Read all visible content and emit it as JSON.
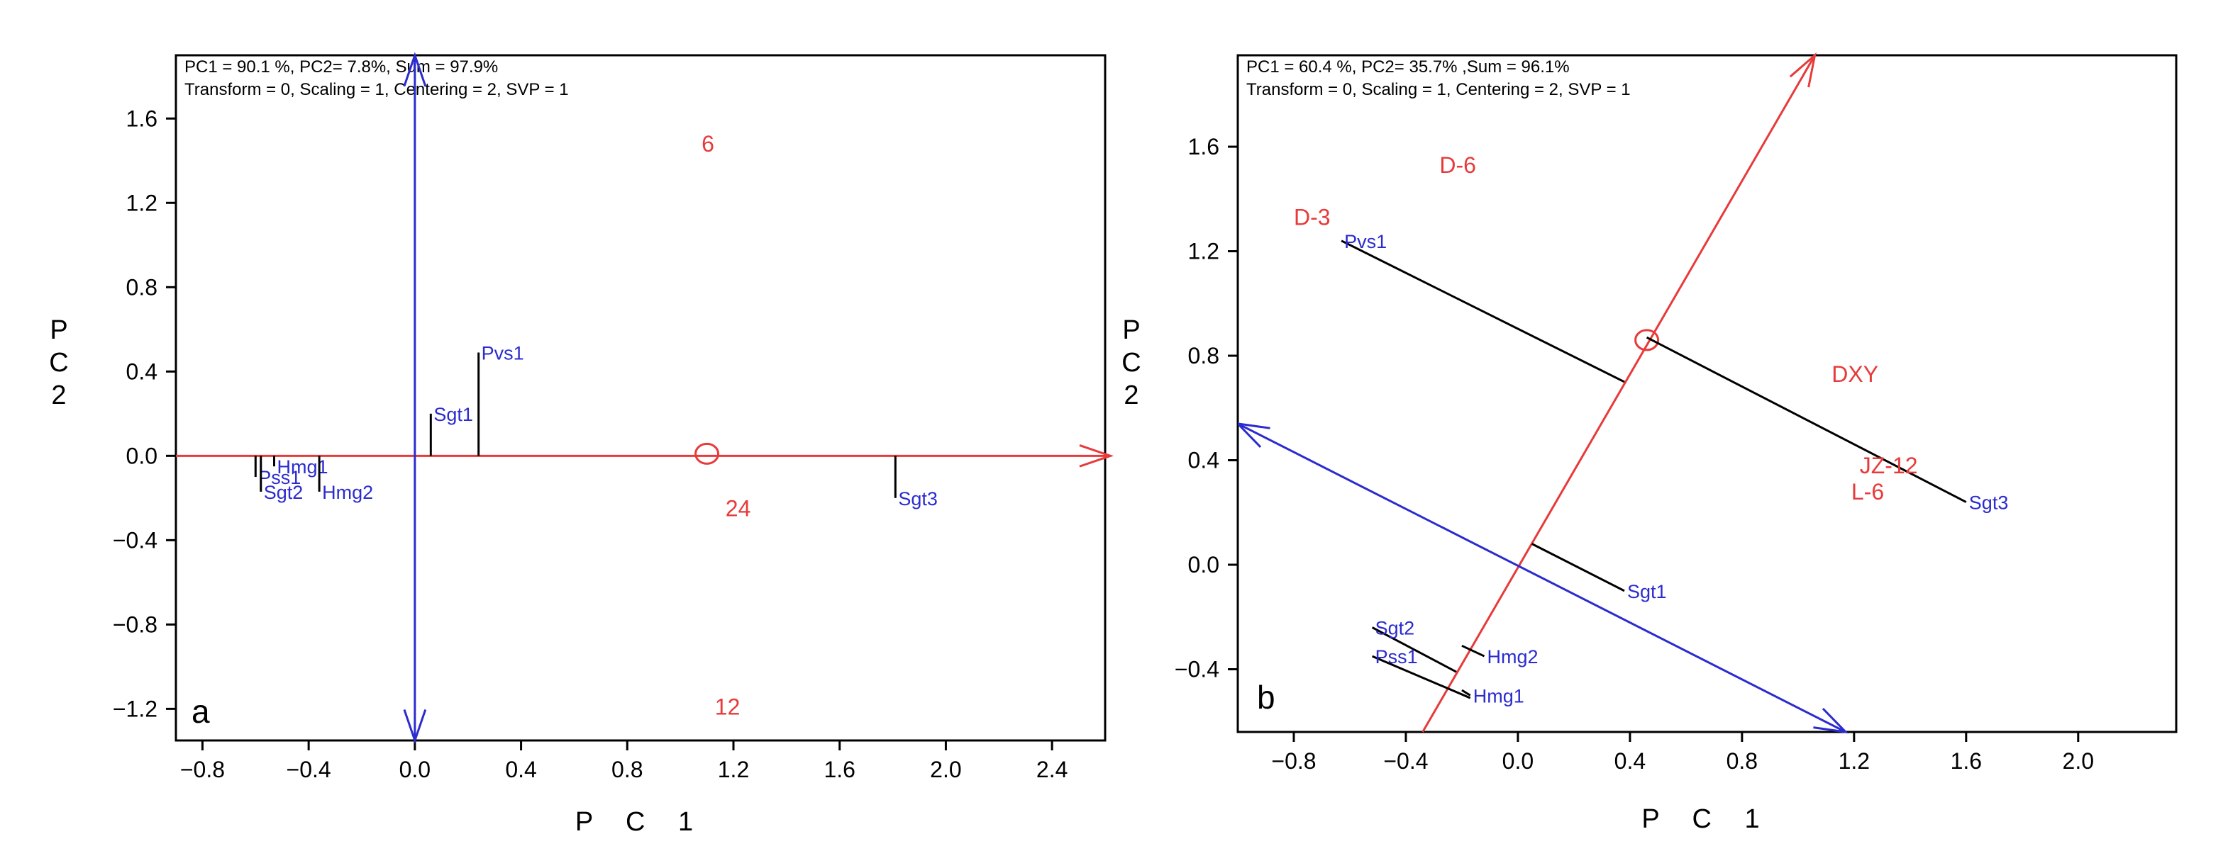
{
  "chart_data": [
    {
      "type": "scatter",
      "panel_label": "a",
      "xlabel": "P C 1",
      "ylabel": "P C 2",
      "info_lines": [
        "PC1 = 90.1 %,  PC2= 7.8%, Sum = 97.9%",
        "Transform = 0,  Scaling = 1,  Centering = 2,  SVP = 1"
      ],
      "xlim": [
        -0.9,
        2.6
      ],
      "ylim": [
        -1.35,
        1.9
      ],
      "x_ticks": [
        -0.8,
        -0.4,
        0.0,
        0.4,
        0.8,
        1.2,
        1.6,
        2.0,
        2.4
      ],
      "x_tick_labels": [
        "−0.8",
        "−0.4",
        "0.0",
        "0.4",
        "0.8",
        "1.2",
        "1.6",
        "2.0",
        "2.4"
      ],
      "y_ticks": [
        -1.2,
        -0.8,
        -0.4,
        0.0,
        0.4,
        0.8,
        1.2,
        1.6
      ],
      "y_tick_labels": [
        "−1.2",
        "−0.8",
        "−0.4",
        "0.0",
        "0.4",
        "0.8",
        "1.2",
        "1.6"
      ],
      "axis_red": {
        "from": [
          -0.9,
          0.0
        ],
        "to": [
          2.62,
          0.0
        ]
      },
      "axis_blue": {
        "from": [
          0.0,
          -1.35
        ],
        "to": [
          0.0,
          1.9
        ]
      },
      "circle_marker": [
        1.1,
        0.01
      ],
      "variables": [
        {
          "name": "Pvs1",
          "x": 0.24,
          "y": 0.49,
          "line": [
            [
              0.24,
              0.0
            ],
            [
              0.24,
              0.49
            ]
          ]
        },
        {
          "name": "Sgt1",
          "x": 0.06,
          "y": 0.2,
          "line": [
            [
              0.06,
              0.0
            ],
            [
              0.06,
              0.2
            ]
          ]
        },
        {
          "name": "Hmg1",
          "x": -0.53,
          "y": -0.05,
          "line": [
            [
              -0.53,
              0.0
            ],
            [
              -0.53,
              -0.05
            ]
          ]
        },
        {
          "name": "Pss1",
          "x": -0.6,
          "y": -0.1,
          "line": [
            [
              -0.6,
              0.0
            ],
            [
              -0.6,
              -0.1
            ]
          ]
        },
        {
          "name": "Sgt2",
          "x": -0.58,
          "y": -0.17,
          "line": [
            [
              -0.58,
              0.0
            ],
            [
              -0.58,
              -0.17
            ]
          ]
        },
        {
          "name": "Hmg2",
          "x": -0.36,
          "y": -0.17,
          "line": [
            [
              -0.36,
              0.0
            ],
            [
              -0.36,
              -0.17
            ]
          ]
        },
        {
          "name": "Sgt3",
          "x": 1.81,
          "y": -0.2,
          "line": [
            [
              1.81,
              0.0
            ],
            [
              1.81,
              -0.2
            ]
          ]
        }
      ],
      "objects": [
        {
          "name": "6",
          "x": 1.08,
          "y": 1.48
        },
        {
          "name": "24",
          "x": 1.17,
          "y": -0.25
        },
        {
          "name": "12",
          "x": 1.13,
          "y": -1.19
        }
      ]
    },
    {
      "type": "scatter",
      "panel_label": "b",
      "xlabel": "P C 1",
      "ylabel": "P C 2",
      "info_lines": [
        "PC1 = 60.4 %,  PC2= 35.7% ,Sum = 96.1%",
        "Transform = 0,  Scaling = 1,  Centering = 2,  SVP = 1"
      ],
      "xlim": [
        -1.0,
        2.35
      ],
      "ylim": [
        -0.64,
        1.95
      ],
      "x_ticks": [
        -0.8,
        -0.4,
        0.0,
        0.4,
        0.8,
        1.2,
        1.6,
        2.0
      ],
      "x_tick_labels": [
        "−0.8",
        "−0.4",
        "0.0",
        "0.4",
        "0.8",
        "1.2",
        "1.6",
        "2.0"
      ],
      "y_ticks": [
        -0.4,
        0.0,
        0.4,
        0.8,
        1.2,
        1.6
      ],
      "y_tick_labels": [
        "−0.4",
        "0.0",
        "0.4",
        "0.8",
        "1.2",
        "1.6"
      ],
      "axis_red": {
        "from": [
          -0.34,
          -0.64
        ],
        "to": [
          1.06,
          1.95
        ]
      },
      "axis_blue": {
        "from": [
          1.17,
          -0.64
        ],
        "to": [
          -1.0,
          0.54
        ]
      },
      "circle_marker": [
        0.46,
        0.86
      ],
      "variables": [
        {
          "name": "Pvs1",
          "x": -0.63,
          "y": 1.24,
          "line": [
            [
              -0.63,
              1.24
            ],
            [
              0.38,
              0.7
            ]
          ]
        },
        {
          "name": "Sgt3",
          "x": 1.6,
          "y": 0.24,
          "line": [
            [
              1.6,
              0.24
            ],
            [
              0.46,
              0.87
            ]
          ]
        },
        {
          "name": "Sgt1",
          "x": 0.38,
          "y": -0.1,
          "line": [
            [
              0.38,
              -0.1
            ],
            [
              0.05,
              0.08
            ]
          ]
        },
        {
          "name": "Sgt2",
          "x": -0.52,
          "y": -0.24,
          "line": [
            [
              -0.52,
              -0.24
            ],
            [
              -0.22,
              -0.41
            ]
          ]
        },
        {
          "name": "Pss1",
          "x": -0.52,
          "y": -0.35,
          "line": [
            [
              -0.52,
              -0.35
            ],
            [
              -0.17,
              -0.51
            ]
          ]
        },
        {
          "name": "Hmg2",
          "x": -0.12,
          "y": -0.35,
          "line": [
            [
              -0.12,
              -0.35
            ],
            [
              -0.2,
              -0.31
            ]
          ]
        },
        {
          "name": "Hmg1",
          "x": -0.17,
          "y": -0.5,
          "line": [
            [
              -0.17,
              -0.5
            ],
            [
              -0.2,
              -0.48
            ]
          ]
        }
      ],
      "objects": [
        {
          "name": "D-6",
          "x": -0.28,
          "y": 1.53
        },
        {
          "name": "D-3",
          "x": -0.8,
          "y": 1.33
        },
        {
          "name": "DXY",
          "x": 1.12,
          "y": 0.73
        },
        {
          "name": "JZ-12",
          "x": 1.22,
          "y": 0.38
        },
        {
          "name": "L-6",
          "x": 1.19,
          "y": 0.28
        }
      ]
    }
  ],
  "colors": {
    "red_axis": "#e83a3a",
    "blue_axis": "#2b2bd0",
    "variable_text": "#2b2bd0",
    "object_text": "#e83a3a",
    "projection_line": "#000000"
  }
}
